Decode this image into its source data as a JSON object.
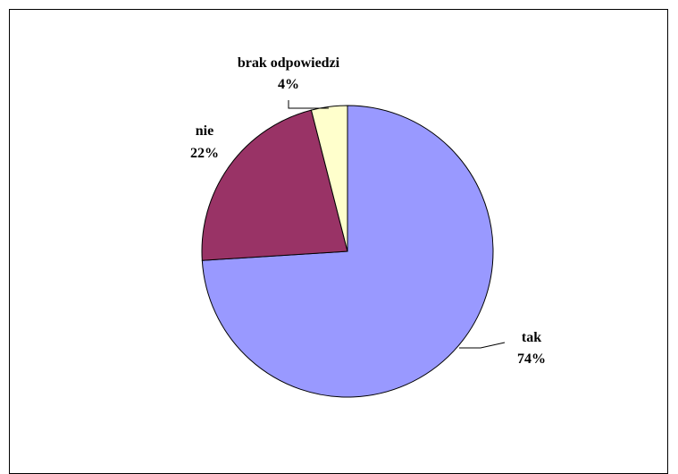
{
  "chart_data": {
    "type": "pie",
    "title": "",
    "slices": [
      {
        "label": "tak",
        "percent_label": "74%",
        "value": 74,
        "color": "#9999ff"
      },
      {
        "label": "nie",
        "percent_label": "22%",
        "value": 22,
        "color": "#993366"
      },
      {
        "label": "brak odpowiedzi",
        "percent_label": "4%",
        "value": 4,
        "color": "#ffffcc"
      }
    ],
    "start": "12 o'clock",
    "direction": "clockwise",
    "legend": "none",
    "data_labels": "category name and percentage"
  }
}
